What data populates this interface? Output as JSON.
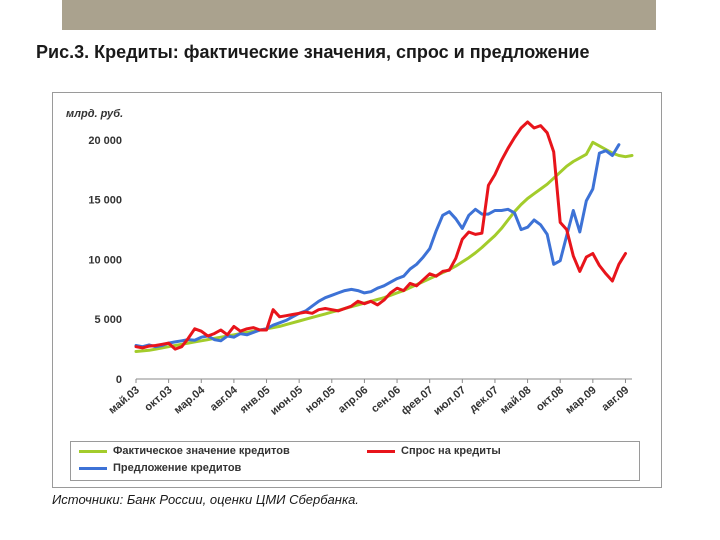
{
  "title": "Рис.3. Кредиты: фактические значения, спрос и предложение",
  "source": "Источники: Банк России, оценки ЦМИ Сбербанка.",
  "colors": {
    "actual": "#a3cc2b",
    "demand": "#e8141b",
    "supply": "#3d72d6",
    "top_bar": "#aaa28e"
  },
  "chart_data": {
    "type": "line",
    "ylabel": "млрд. руб.",
    "ylim": [
      0,
      21000
    ],
    "yticks": [
      0,
      5000,
      10000,
      15000,
      20000
    ],
    "ytick_labels": [
      "0",
      "5 000",
      "10 000",
      "15 000",
      "20 000"
    ],
    "x_tick_labels": [
      "май.03",
      "окт.03",
      "мар.04",
      "авг.04",
      "янв.05",
      "июн.05",
      "ноя.05",
      "апр.06",
      "сен.06",
      "фев.07",
      "июл.07",
      "дек.07",
      "май.08",
      "окт.08",
      "мар.09",
      "авг.09"
    ],
    "x_tick_index": [
      0,
      5,
      10,
      15,
      20,
      25,
      30,
      35,
      40,
      45,
      50,
      55,
      60,
      65,
      70,
      75
    ],
    "legend_position": "bottom",
    "series": [
      {
        "name": "Фактическое значение кредитов",
        "color": "#a3cc2b",
        "values": [
          2300,
          2350,
          2400,
          2500,
          2600,
          2700,
          2800,
          2900,
          3000,
          3100,
          3200,
          3300,
          3400,
          3500,
          3600,
          3700,
          3800,
          3900,
          4000,
          4100,
          4200,
          4300,
          4400,
          4550,
          4700,
          4850,
          5000,
          5150,
          5300,
          5450,
          5600,
          5750,
          5900,
          6050,
          6200,
          6350,
          6500,
          6650,
          6800,
          7000,
          7200,
          7400,
          7650,
          7900,
          8150,
          8400,
          8650,
          8900,
          9150,
          9450,
          9800,
          10150,
          10550,
          11000,
          11500,
          12000,
          12600,
          13300,
          14000,
          14600,
          15100,
          15500,
          15900,
          16300,
          16800,
          17300,
          17800,
          18200,
          18500,
          18800,
          19800,
          19500,
          19200,
          18900,
          18700,
          18600,
          18700
        ]
      },
      {
        "name": "Спрос на кредиты",
        "color": "#e8141b",
        "values": [
          2700,
          2600,
          2750,
          2800,
          2900,
          3000,
          2500,
          2700,
          3400,
          4200,
          4000,
          3600,
          3800,
          4100,
          3700,
          4400,
          4000,
          4200,
          4300,
          4100,
          4100,
          5800,
          5200,
          5300,
          5400,
          5500,
          5600,
          5500,
          5800,
          5900,
          5800,
          5700,
          5900,
          6100,
          6500,
          6300,
          6500,
          6200,
          6600,
          7200,
          7600,
          7400,
          8000,
          7800,
          8300,
          8800,
          8600,
          9000,
          9100,
          10100,
          11700,
          12300,
          12100,
          12200,
          16200,
          17100,
          18300,
          19300,
          20200,
          21000,
          21500,
          21000,
          21200,
          20600,
          19000,
          13100,
          12500,
          10300,
          9000,
          10200,
          10500,
          9500,
          8800,
          8200,
          9600,
          10500
        ]
      },
      {
        "name": "Предложение кредитов",
        "color": "#3d72d6",
        "values": [
          2800,
          2700,
          2850,
          2700,
          2800,
          3000,
          3100,
          3200,
          3300,
          3250,
          3500,
          3600,
          3300,
          3200,
          3600,
          3500,
          3800,
          3700,
          3900,
          4100,
          4200,
          4500,
          4700,
          4900,
          5200,
          5500,
          5700,
          6100,
          6500,
          6800,
          7000,
          7200,
          7400,
          7500,
          7400,
          7200,
          7300,
          7600,
          7800,
          8100,
          8400,
          8600,
          9200,
          9600,
          10200,
          10900,
          12400,
          13700,
          14000,
          13400,
          12600,
          13700,
          14200,
          13800,
          13800,
          14100,
          14100,
          14200,
          13900,
          12500,
          12700,
          13300,
          12900,
          12100,
          9600,
          9900,
          12000,
          14100,
          12300,
          14900,
          15900,
          18900,
          19100,
          18700,
          19600
        ]
      }
    ]
  }
}
